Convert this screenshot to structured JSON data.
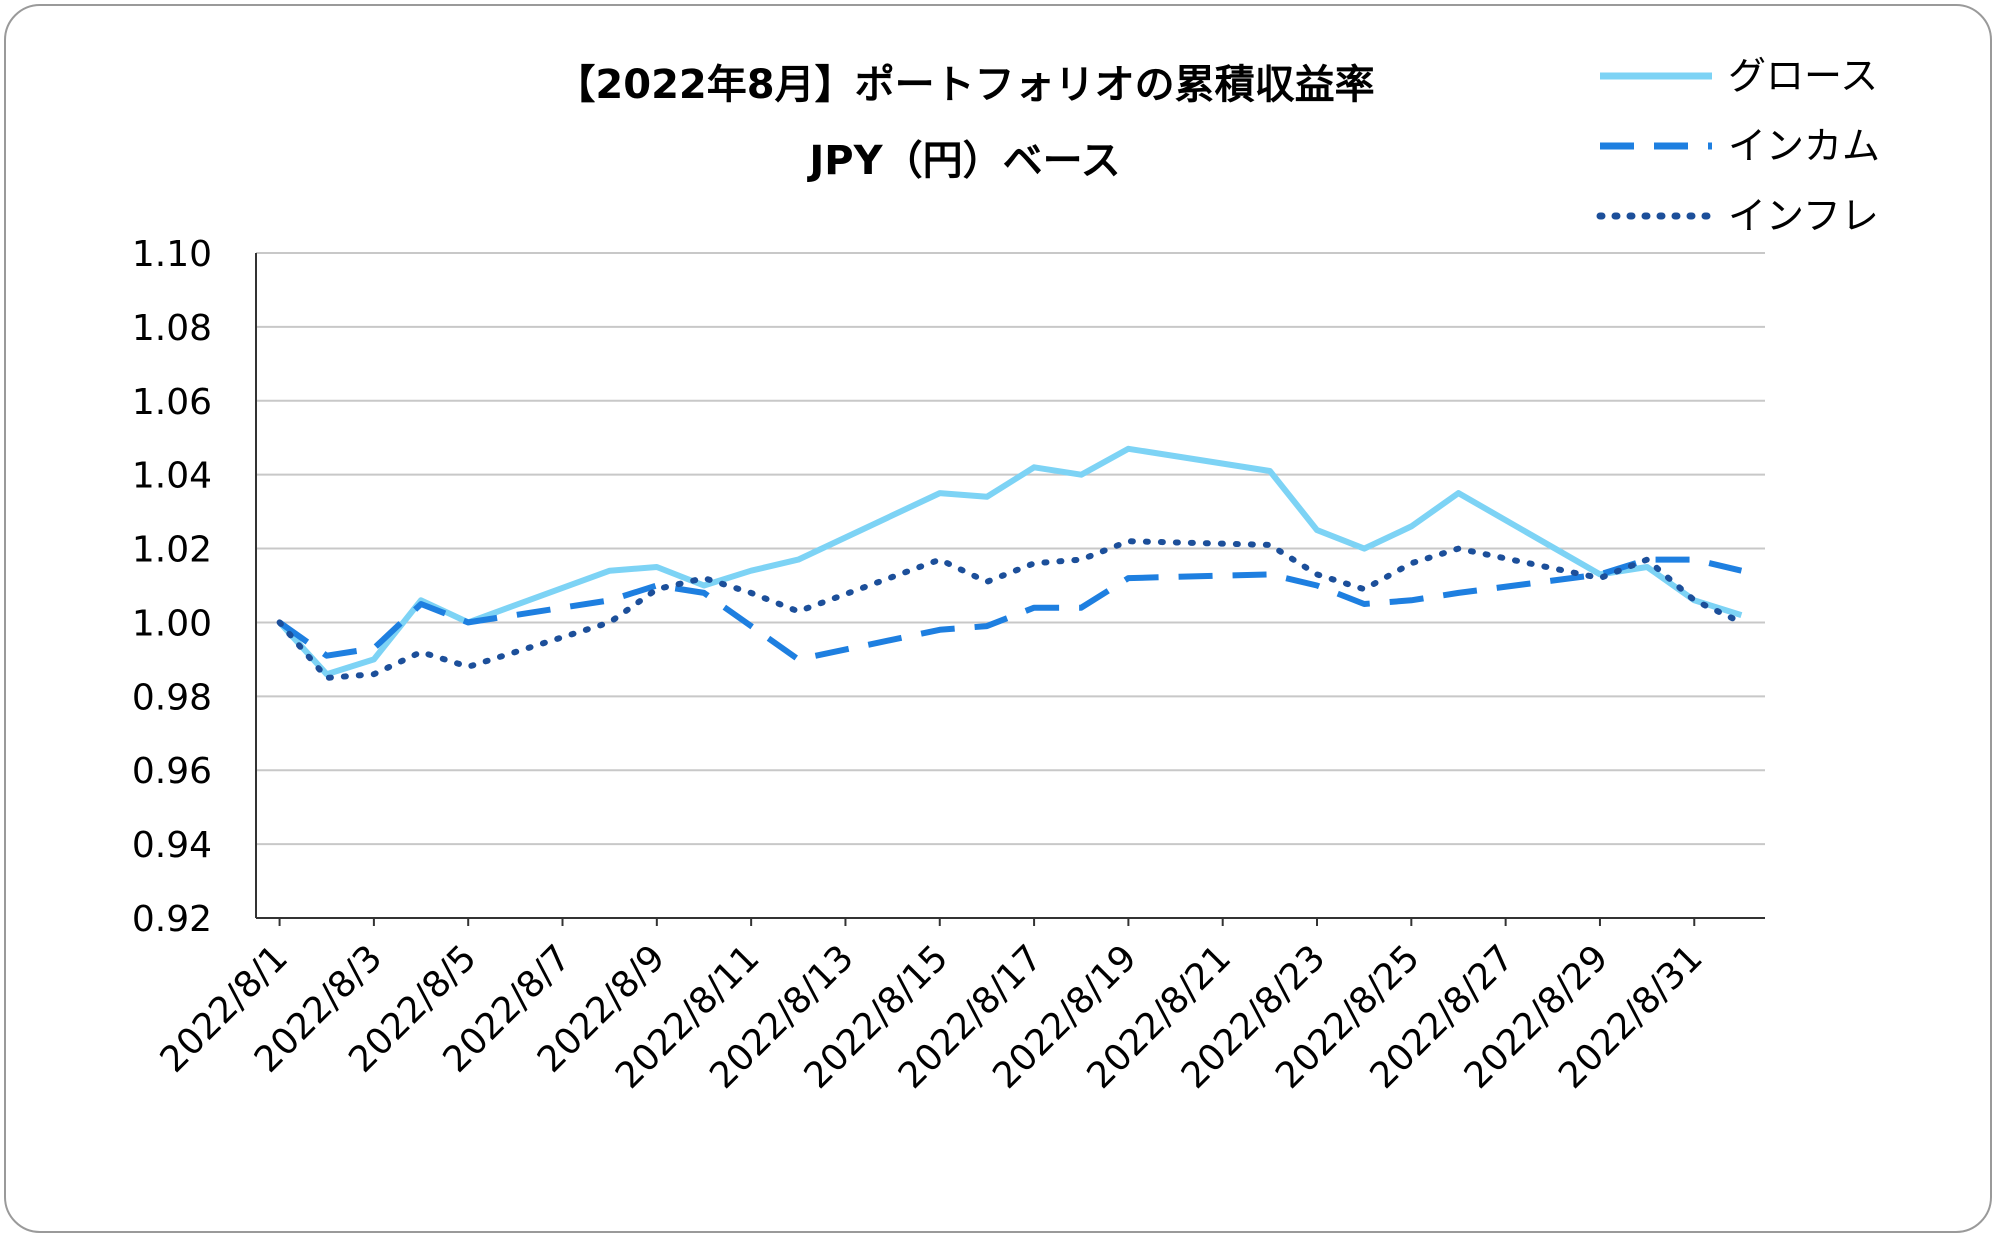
{
  "chart_data": {
    "type": "line",
    "title": "【2022年8月】ポートフォリオの累積収益率",
    "subtitle": "JPY（円）ベース",
    "xlabel": "",
    "ylabel": "",
    "ylim": [
      0.92,
      1.1
    ],
    "y_ticks": [
      "1.10",
      "1.08",
      "1.06",
      "1.04",
      "1.02",
      "1.00",
      "0.98",
      "0.96",
      "0.94",
      "0.92"
    ],
    "x_tick_labels": [
      "2022/8/1",
      "2022/8/3",
      "2022/8/5",
      "2022/8/7",
      "2022/8/9",
      "2022/8/11",
      "2022/8/13",
      "2022/8/15",
      "2022/8/17",
      "2022/8/19",
      "2022/8/21",
      "2022/8/23",
      "2022/8/25",
      "2022/8/27",
      "2022/8/29",
      "2022/8/31"
    ],
    "x_days": [
      1,
      2,
      3,
      4,
      5,
      8,
      9,
      10,
      11,
      12,
      15,
      16,
      17,
      18,
      19,
      22,
      23,
      24,
      25,
      26,
      29,
      30,
      31,
      32
    ],
    "grid": true,
    "legend_position": "top-right",
    "series": [
      {
        "name": "グロース",
        "style": "solid",
        "color": "#7dd3f5",
        "values": [
          1.0,
          0.986,
          0.99,
          1.006,
          1.0,
          1.014,
          1.015,
          1.01,
          1.014,
          1.017,
          1.035,
          1.034,
          1.042,
          1.04,
          1.047,
          1.041,
          1.025,
          1.02,
          1.026,
          1.035,
          1.013,
          1.015,
          1.006,
          1.002
        ]
      },
      {
        "name": "インカム",
        "style": "dashed",
        "color": "#1e7fe0",
        "values": [
          1.0,
          0.991,
          0.993,
          1.005,
          1.0,
          1.006,
          1.01,
          1.008,
          0.999,
          0.99,
          0.998,
          0.999,
          1.004,
          1.004,
          1.012,
          1.013,
          1.01,
          1.005,
          1.006,
          1.008,
          1.013,
          1.017,
          1.017,
          1.014
        ]
      },
      {
        "name": "インフレ",
        "style": "dotted",
        "color": "#1c4f9a",
        "values": [
          1.0,
          0.985,
          0.986,
          0.992,
          0.988,
          1.0,
          1.009,
          1.012,
          1.008,
          1.003,
          1.017,
          1.011,
          1.016,
          1.017,
          1.022,
          1.021,
          1.013,
          1.009,
          1.016,
          1.02,
          1.012,
          1.017,
          1.006,
          1.0
        ]
      }
    ]
  }
}
